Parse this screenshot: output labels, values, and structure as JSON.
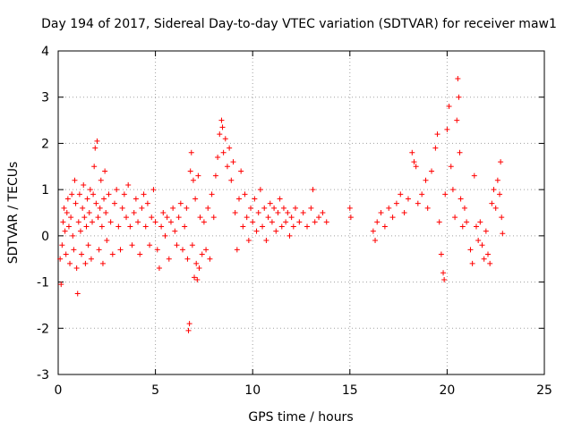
{
  "chart_data": {
    "type": "scatter",
    "title": "Day 194 of 2017, Sidereal Day-to-day VTEC variation (SDTVAR) for receiver maw1",
    "xlabel": "GPS time / hours",
    "ylabel": "SDTVAR / TECUs",
    "xlim": [
      0,
      25
    ],
    "ylim": [
      -3,
      4
    ],
    "xticks": [
      0,
      5,
      10,
      15,
      20,
      25
    ],
    "yticks": [
      -3,
      -2,
      -1,
      0,
      1,
      2,
      3,
      4
    ],
    "grid": true,
    "marker": "+",
    "color": "#ff0000",
    "series": [
      {
        "name": "SDTVAR",
        "points": [
          [
            0.1,
            -0.5
          ],
          [
            0.15,
            -1.05
          ],
          [
            0.2,
            -0.2
          ],
          [
            0.25,
            0.3
          ],
          [
            0.3,
            0.6
          ],
          [
            0.35,
            0.1
          ],
          [
            0.4,
            -0.4
          ],
          [
            0.45,
            0.5
          ],
          [
            0.5,
            0.8
          ],
          [
            0.55,
            0.2
          ],
          [
            0.6,
            -0.6
          ],
          [
            0.65,
            0.4
          ],
          [
            0.7,
            0.9
          ],
          [
            0.75,
            0.0
          ],
          [
            0.8,
            -0.3
          ],
          [
            0.85,
            1.2
          ],
          [
            0.9,
            0.7
          ],
          [
            0.95,
            -0.7
          ],
          [
            1.0,
            -1.25
          ],
          [
            1.05,
            0.3
          ],
          [
            1.1,
            0.9
          ],
          [
            1.15,
            0.1
          ],
          [
            1.2,
            -0.4
          ],
          [
            1.25,
            0.6
          ],
          [
            1.3,
            1.1
          ],
          [
            1.35,
            0.4
          ],
          [
            1.4,
            -0.6
          ],
          [
            1.45,
            0.2
          ],
          [
            1.5,
            0.8
          ],
          [
            1.55,
            -0.2
          ],
          [
            1.6,
            0.5
          ],
          [
            1.65,
            1.0
          ],
          [
            1.7,
            -0.5
          ],
          [
            1.75,
            0.3
          ],
          [
            1.8,
            0.9
          ],
          [
            1.85,
            1.5
          ],
          [
            1.9,
            1.9
          ],
          [
            1.95,
            0.7
          ],
          [
            2.0,
            2.05
          ],
          [
            2.05,
            0.4
          ],
          [
            2.1,
            -0.3
          ],
          [
            2.15,
            0.6
          ],
          [
            2.2,
            1.2
          ],
          [
            2.25,
            0.2
          ],
          [
            2.3,
            -0.6
          ],
          [
            2.35,
            0.8
          ],
          [
            2.4,
            1.4
          ],
          [
            2.45,
            0.5
          ],
          [
            2.5,
            -0.1
          ],
          [
            2.6,
            0.9
          ],
          [
            2.7,
            0.3
          ],
          [
            2.8,
            -0.4
          ],
          [
            2.9,
            0.7
          ],
          [
            3.0,
            1.0
          ],
          [
            3.1,
            0.2
          ],
          [
            3.2,
            -0.3
          ],
          [
            3.3,
            0.6
          ],
          [
            3.4,
            0.9
          ],
          [
            3.5,
            0.4
          ],
          [
            3.6,
            1.1
          ],
          [
            3.7,
            0.2
          ],
          [
            3.8,
            -0.2
          ],
          [
            3.9,
            0.5
          ],
          [
            4.0,
            0.8
          ],
          [
            4.1,
            0.3
          ],
          [
            4.2,
            -0.4
          ],
          [
            4.3,
            0.6
          ],
          [
            4.4,
            0.9
          ],
          [
            4.5,
            0.2
          ],
          [
            4.6,
            0.7
          ],
          [
            4.7,
            -0.2
          ],
          [
            4.8,
            0.4
          ],
          [
            4.9,
            1.0
          ],
          [
            5.0,
            0.3
          ],
          [
            5.1,
            -0.3
          ],
          [
            5.2,
            -0.7
          ],
          [
            5.3,
            0.2
          ],
          [
            5.4,
            0.5
          ],
          [
            5.5,
            0.0
          ],
          [
            5.6,
            0.4
          ],
          [
            5.7,
            -0.5
          ],
          [
            5.8,
            0.3
          ],
          [
            5.9,
            0.6
          ],
          [
            6.0,
            0.1
          ],
          [
            6.1,
            -0.2
          ],
          [
            6.2,
            0.4
          ],
          [
            6.3,
            0.7
          ],
          [
            6.4,
            -0.3
          ],
          [
            6.5,
            0.2
          ],
          [
            6.6,
            0.6
          ],
          [
            6.65,
            -0.5
          ],
          [
            6.7,
            -2.05
          ],
          [
            6.75,
            -1.9
          ],
          [
            6.8,
            1.4
          ],
          [
            6.85,
            1.8
          ],
          [
            6.9,
            -0.2
          ],
          [
            6.95,
            1.2
          ],
          [
            7.0,
            -0.9
          ],
          [
            7.05,
            0.8
          ],
          [
            7.1,
            -0.6
          ],
          [
            7.15,
            -0.95
          ],
          [
            7.2,
            1.3
          ],
          [
            7.25,
            -0.7
          ],
          [
            7.3,
            0.4
          ],
          [
            7.4,
            -0.4
          ],
          [
            7.5,
            0.3
          ],
          [
            7.6,
            -0.3
          ],
          [
            7.7,
            0.6
          ],
          [
            7.8,
            -0.5
          ],
          [
            7.9,
            0.9
          ],
          [
            8.0,
            0.4
          ],
          [
            8.1,
            1.3
          ],
          [
            8.2,
            1.7
          ],
          [
            8.3,
            2.2
          ],
          [
            8.4,
            2.5
          ],
          [
            8.45,
            2.35
          ],
          [
            8.5,
            1.8
          ],
          [
            8.6,
            2.1
          ],
          [
            8.7,
            1.5
          ],
          [
            8.8,
            1.9
          ],
          [
            8.9,
            1.2
          ],
          [
            9.0,
            1.6
          ],
          [
            9.1,
            0.5
          ],
          [
            9.2,
            -0.3
          ],
          [
            9.3,
            0.8
          ],
          [
            9.4,
            1.4
          ],
          [
            9.5,
            0.2
          ],
          [
            9.6,
            0.9
          ],
          [
            9.7,
            0.4
          ],
          [
            9.8,
            -0.1
          ],
          [
            9.9,
            0.6
          ],
          [
            10.0,
            0.3
          ],
          [
            10.1,
            0.8
          ],
          [
            10.2,
            0.1
          ],
          [
            10.3,
            0.5
          ],
          [
            10.4,
            1.0
          ],
          [
            10.5,
            0.2
          ],
          [
            10.6,
            0.6
          ],
          [
            10.7,
            -0.1
          ],
          [
            10.8,
            0.4
          ],
          [
            10.9,
            0.7
          ],
          [
            11.0,
            0.3
          ],
          [
            11.1,
            0.6
          ],
          [
            11.2,
            0.1
          ],
          [
            11.3,
            0.5
          ],
          [
            11.4,
            0.8
          ],
          [
            11.5,
            0.2
          ],
          [
            11.6,
            0.6
          ],
          [
            11.7,
            0.3
          ],
          [
            11.8,
            0.5
          ],
          [
            11.9,
            0.0
          ],
          [
            12.0,
            0.4
          ],
          [
            12.1,
            0.2
          ],
          [
            12.2,
            0.6
          ],
          [
            12.4,
            0.3
          ],
          [
            12.6,
            0.5
          ],
          [
            12.8,
            0.2
          ],
          [
            13.0,
            0.6
          ],
          [
            13.1,
            1.0
          ],
          [
            13.2,
            0.3
          ],
          [
            13.4,
            0.4
          ],
          [
            13.6,
            0.5
          ],
          [
            13.8,
            0.3
          ],
          [
            15.0,
            0.6
          ],
          [
            15.05,
            0.4
          ],
          [
            16.2,
            0.1
          ],
          [
            16.3,
            -0.1
          ],
          [
            16.4,
            0.3
          ],
          [
            16.6,
            0.5
          ],
          [
            16.8,
            0.2
          ],
          [
            17.0,
            0.6
          ],
          [
            17.2,
            0.4
          ],
          [
            17.4,
            0.7
          ],
          [
            17.6,
            0.9
          ],
          [
            17.8,
            0.5
          ],
          [
            18.0,
            0.8
          ],
          [
            18.2,
            1.8
          ],
          [
            18.3,
            1.6
          ],
          [
            18.4,
            1.5
          ],
          [
            18.5,
            0.7
          ],
          [
            18.7,
            0.9
          ],
          [
            18.9,
            1.2
          ],
          [
            19.0,
            0.6
          ],
          [
            19.2,
            1.4
          ],
          [
            19.4,
            1.9
          ],
          [
            19.5,
            2.2
          ],
          [
            19.6,
            0.3
          ],
          [
            19.7,
            -0.4
          ],
          [
            19.8,
            -0.8
          ],
          [
            19.85,
            -0.95
          ],
          [
            19.9,
            0.9
          ],
          [
            20.0,
            2.3
          ],
          [
            20.1,
            2.8
          ],
          [
            20.2,
            1.5
          ],
          [
            20.3,
            1.0
          ],
          [
            20.4,
            0.4
          ],
          [
            20.5,
            2.5
          ],
          [
            20.55,
            3.4
          ],
          [
            20.6,
            3.0
          ],
          [
            20.65,
            1.8
          ],
          [
            20.7,
            0.8
          ],
          [
            20.8,
            0.2
          ],
          [
            20.9,
            0.6
          ],
          [
            21.0,
            0.3
          ],
          [
            21.2,
            -0.3
          ],
          [
            21.3,
            -0.6
          ],
          [
            21.4,
            1.3
          ],
          [
            21.5,
            0.2
          ],
          [
            21.6,
            -0.1
          ],
          [
            21.7,
            0.3
          ],
          [
            21.8,
            -0.2
          ],
          [
            21.9,
            -0.5
          ],
          [
            22.0,
            0.1
          ],
          [
            22.1,
            -0.4
          ],
          [
            22.2,
            -0.6
          ],
          [
            22.3,
            0.7
          ],
          [
            22.4,
            1.0
          ],
          [
            22.5,
            0.6
          ],
          [
            22.6,
            1.2
          ],
          [
            22.7,
            0.9
          ],
          [
            22.75,
            1.6
          ],
          [
            22.8,
            0.4
          ],
          [
            22.85,
            0.05
          ]
        ]
      }
    ]
  }
}
